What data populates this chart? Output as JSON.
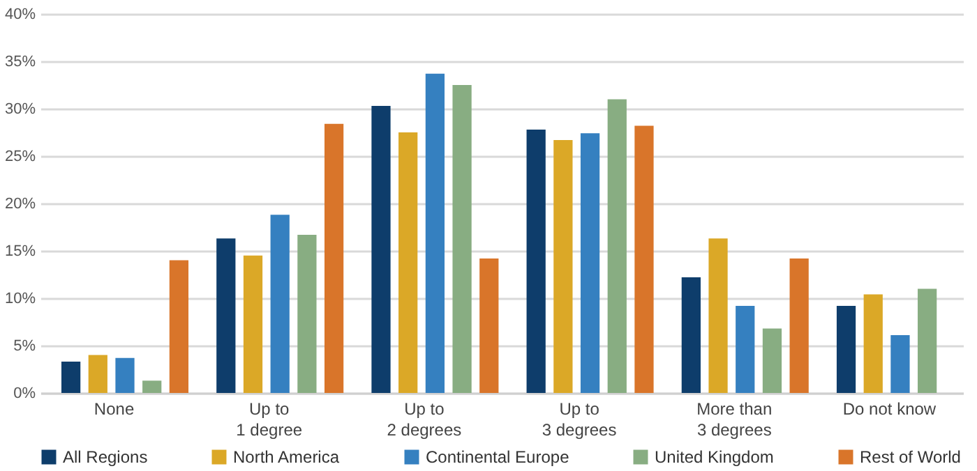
{
  "chart_data": {
    "type": "bar",
    "categories": [
      "None",
      "Up to\n1 degree",
      "Up to\n2 degrees",
      "Up to\n3 degrees",
      "More than\n3 degrees",
      "Do not know"
    ],
    "series": [
      {
        "name": "All Regions",
        "color": "#0e3d6b",
        "values": [
          3.3,
          16.3,
          30.3,
          27.8,
          12.2,
          9.2
        ]
      },
      {
        "name": "North America",
        "color": "#dba827",
        "values": [
          4.0,
          14.5,
          27.5,
          26.7,
          16.3,
          10.4
        ]
      },
      {
        "name": "Continental Europe",
        "color": "#3580c0",
        "values": [
          3.7,
          18.8,
          33.7,
          27.4,
          9.2,
          6.1
        ]
      },
      {
        "name": "United Kingdom",
        "color": "#88ad82",
        "values": [
          1.3,
          16.7,
          32.5,
          31.0,
          6.8,
          11.0
        ]
      },
      {
        "name": "Rest of World",
        "color": "#d9752a",
        "values": [
          14.0,
          28.4,
          14.2,
          28.2,
          14.2,
          null
        ]
      }
    ],
    "ylim": [
      0,
      40
    ],
    "yticks": [
      {
        "value": 0,
        "label": "0%"
      },
      {
        "value": 5,
        "label": "5%"
      },
      {
        "value": 10,
        "label": "10%"
      },
      {
        "value": 15,
        "label": "15%"
      },
      {
        "value": 20,
        "label": "20%"
      },
      {
        "value": 25,
        "label": "25%"
      },
      {
        "value": 30,
        "label": "30%"
      },
      {
        "value": 35,
        "label": "35%"
      },
      {
        "value": 40,
        "label": "40%"
      }
    ],
    "grid": "y",
    "legend": "bottom"
  }
}
